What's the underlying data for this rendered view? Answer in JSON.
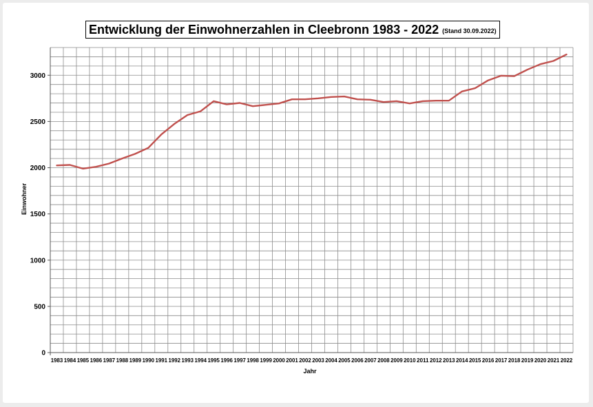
{
  "chart_data": {
    "type": "line",
    "title": "Entwicklung der Einwohnerzahlen in Cleebronn 1983 - 2022",
    "subtitle": "(Stand 30.09.2022)",
    "xlabel": "Jahr",
    "ylabel": "Einwohner",
    "ylim": [
      0,
      3300
    ],
    "yticks": [
      0,
      500,
      1000,
      1500,
      2000,
      2500,
      3000
    ],
    "grid": true,
    "line_color": "#c0504d",
    "categories": [
      "1983",
      "1984",
      "1985",
      "1986",
      "1987",
      "1988",
      "1989",
      "1990",
      "1991",
      "1992",
      "1993",
      "1994",
      "1995",
      "1996",
      "1997",
      "1998",
      "1999",
      "2000",
      "2001",
      "2002",
      "2003",
      "2004",
      "2005",
      "2006",
      "2007",
      "2008",
      "2009",
      "2010",
      "2011",
      "2012",
      "2013",
      "2014",
      "2015",
      "2016",
      "2017",
      "2018",
      "2019",
      "2020",
      "2021",
      "2022"
    ],
    "series": [
      {
        "values": [
          2025,
          2030,
          1990,
          2010,
          2045,
          2100,
          2150,
          2215,
          2360,
          2475,
          2570,
          2610,
          2720,
          2685,
          2700,
          2665,
          2680,
          2695,
          2740,
          2740,
          2750,
          2765,
          2770,
          2740,
          2735,
          2710,
          2720,
          2695,
          2720,
          2725,
          2725,
          2825,
          2860,
          2945,
          2995,
          2990,
          3060,
          3120,
          3155,
          3225
        ]
      }
    ]
  }
}
